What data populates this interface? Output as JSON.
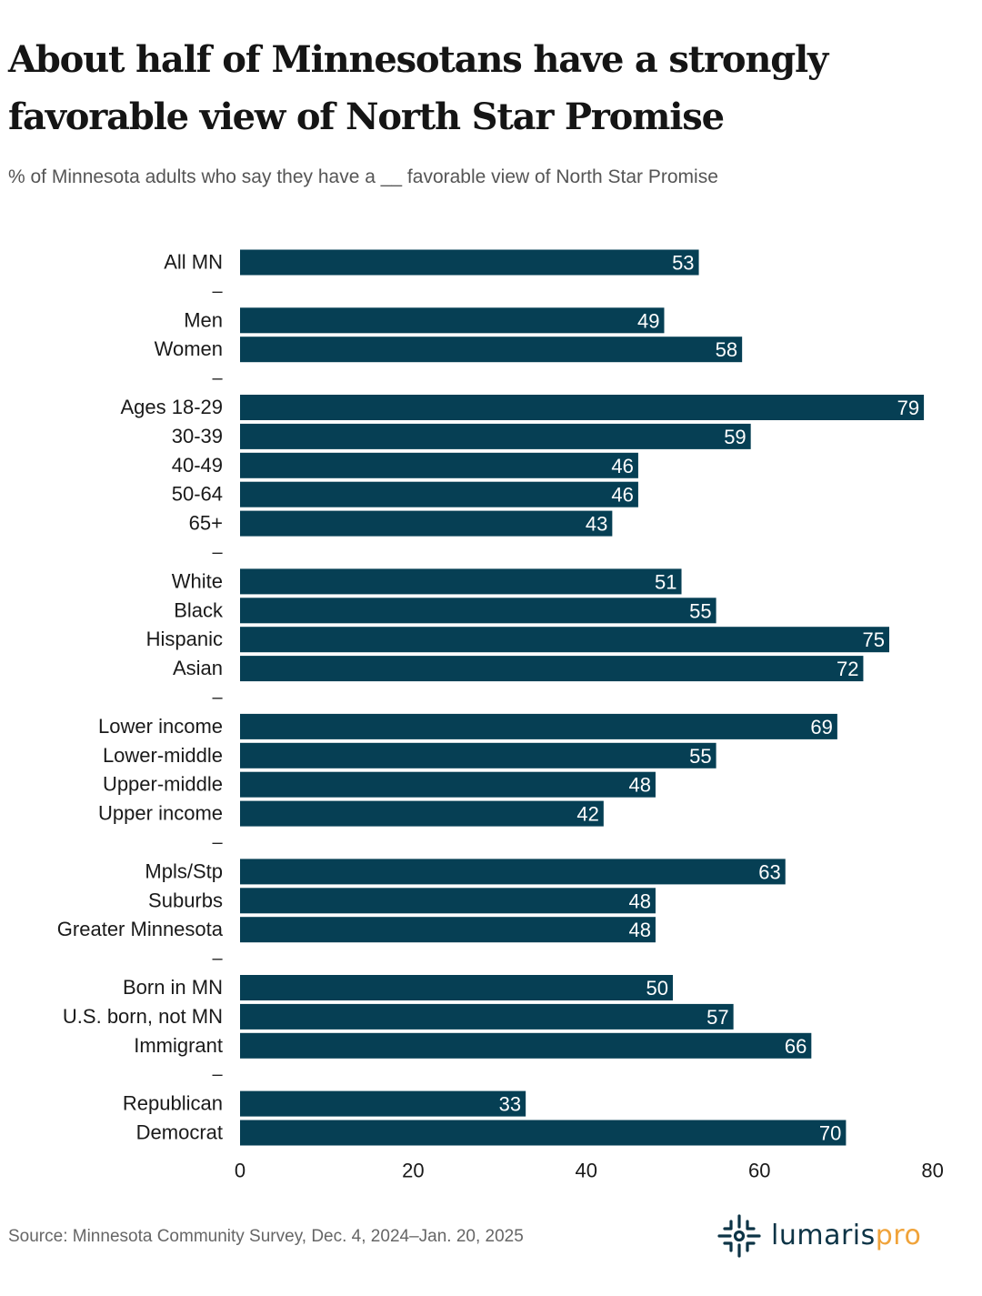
{
  "header": {
    "title": "About half of Minnesotans have a strongly favorable view of North Star Promise",
    "subtitle": "% of Minnesota adults who say they have a __ favorable view of North Star Promise"
  },
  "footer": {
    "source": "Source: Minnesota Community Survey, Dec. 4, 2024–Jan. 20, 2025",
    "logo_part1": "lumaris",
    "logo_part2": "pro"
  },
  "colors": {
    "bar": "#063f54",
    "bar_label": "#ffffff",
    "logo_dark": "#0d3446",
    "logo_accent": "#f0a33a"
  },
  "chart_data": {
    "type": "bar",
    "orientation": "horizontal",
    "title": "About half of Minnesotans have a strongly favorable view of North Star Promise",
    "subtitle": "% of Minnesota adults who say they have a __ favorable view of North Star Promise",
    "xlabel": "",
    "ylabel": "",
    "xlim": [
      0,
      80
    ],
    "xticks": [
      0,
      20,
      40,
      60,
      80
    ],
    "grid": false,
    "separator_label": "–",
    "groups": [
      {
        "categories": [
          "All MN"
        ],
        "values": [
          53
        ]
      },
      {
        "categories": [
          "Men",
          "Women"
        ],
        "values": [
          49,
          58
        ]
      },
      {
        "categories": [
          "Ages 18-29",
          "30-39",
          "40-49",
          "50-64",
          "65+"
        ],
        "values": [
          79,
          59,
          46,
          46,
          43
        ]
      },
      {
        "categories": [
          "White",
          "Black",
          "Hispanic",
          "Asian"
        ],
        "values": [
          51,
          55,
          75,
          72
        ]
      },
      {
        "categories": [
          "Lower income",
          "Lower-middle",
          "Upper-middle",
          "Upper income"
        ],
        "values": [
          69,
          55,
          48,
          42
        ]
      },
      {
        "categories": [
          "Mpls/Stp",
          "Suburbs",
          "Greater Minnesota"
        ],
        "values": [
          63,
          48,
          48
        ]
      },
      {
        "categories": [
          "Born in MN",
          "U.S. born, not MN",
          "Immigrant"
        ],
        "values": [
          50,
          57,
          66
        ]
      },
      {
        "categories": [
          "Republican",
          "Democrat"
        ],
        "values": [
          33,
          70
        ]
      }
    ]
  }
}
